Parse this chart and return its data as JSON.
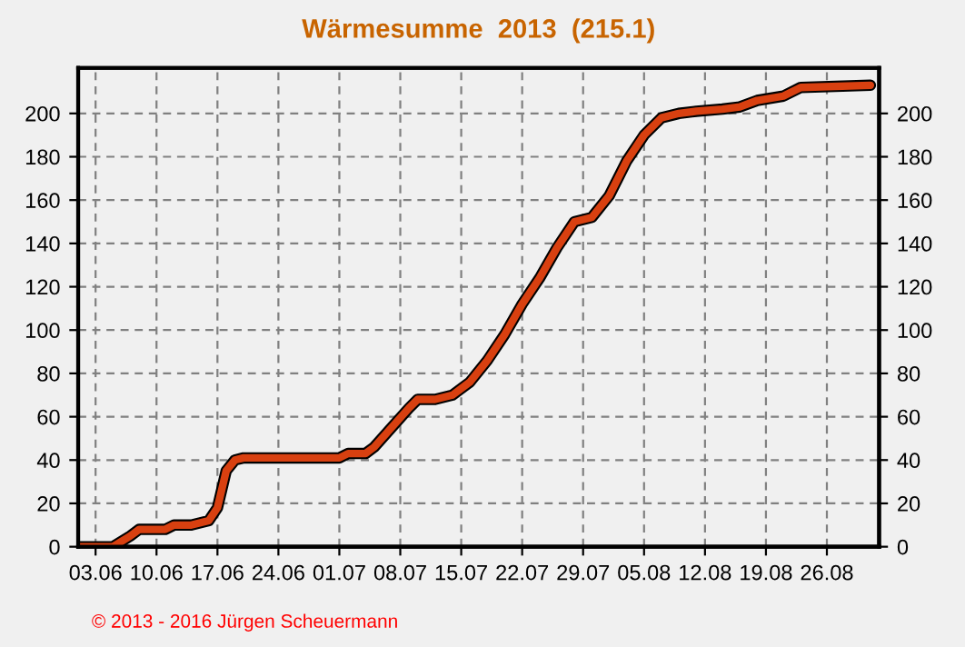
{
  "chart_data": {
    "type": "line",
    "title": "Wärmesumme  2013  (215.1)",
    "x": [
      "2013-06-01",
      "2013-06-05",
      "2013-06-07",
      "2013-06-08",
      "2013-06-11",
      "2013-06-12",
      "2013-06-14",
      "2013-06-16",
      "2013-06-17",
      "2013-06-18",
      "2013-06-19",
      "2013-06-20",
      "2013-06-30",
      "2013-07-01",
      "2013-07-02",
      "2013-07-04",
      "2013-07-05",
      "2013-07-07",
      "2013-07-09",
      "2013-07-10",
      "2013-07-12",
      "2013-07-14",
      "2013-07-16",
      "2013-07-18",
      "2013-07-20",
      "2013-07-22",
      "2013-07-24",
      "2013-07-26",
      "2013-07-28",
      "2013-07-30",
      "2013-08-01",
      "2013-08-03",
      "2013-08-05",
      "2013-08-07",
      "2013-08-09",
      "2013-08-11",
      "2013-08-14",
      "2013-08-16",
      "2013-08-18",
      "2013-08-21",
      "2013-08-23",
      "2013-08-31"
    ],
    "series": [
      {
        "color": "#d84010",
        "values": [
          0,
          0,
          5,
          8,
          8,
          10,
          10,
          12,
          18,
          35,
          40,
          41,
          41,
          41,
          43,
          43,
          46,
          55,
          64,
          68,
          68,
          70,
          76,
          86,
          98,
          112,
          124,
          138,
          150,
          152,
          162,
          178,
          190,
          198,
          200,
          201,
          202,
          203,
          206,
          208,
          212,
          213
        ]
      }
    ],
    "xlim": [
      "2013-06-01",
      "2013-09-01"
    ],
    "xticks": [
      {
        "value": "2013-06-03",
        "label": "03.06"
      },
      {
        "value": "2013-06-10",
        "label": "10.06"
      },
      {
        "value": "2013-06-17",
        "label": "17.06"
      },
      {
        "value": "2013-06-24",
        "label": "24.06"
      },
      {
        "value": "2013-07-01",
        "label": "01.07"
      },
      {
        "value": "2013-07-08",
        "label": "08.07"
      },
      {
        "value": "2013-07-15",
        "label": "15.07"
      },
      {
        "value": "2013-07-22",
        "label": "22.07"
      },
      {
        "value": "2013-07-29",
        "label": "29.07"
      },
      {
        "value": "2013-08-05",
        "label": "05.08"
      },
      {
        "value": "2013-08-12",
        "label": "12.08"
      },
      {
        "value": "2013-08-19",
        "label": "19.08"
      },
      {
        "value": "2013-08-26",
        "label": "26.08"
      }
    ],
    "ylim": [
      0,
      221
    ],
    "yticks": [
      0,
      20,
      40,
      60,
      80,
      100,
      120,
      140,
      160,
      180,
      200
    ],
    "y2lim": [
      0,
      221
    ],
    "y2ticks": [
      0,
      20,
      40,
      60,
      80,
      100,
      120,
      140,
      160,
      180,
      200
    ],
    "grid": true,
    "legend": false,
    "marker": "none",
    "line_style": "solid",
    "annotations": [
      "© 2013 - 2016 Jürgen Scheuermann"
    ]
  }
}
